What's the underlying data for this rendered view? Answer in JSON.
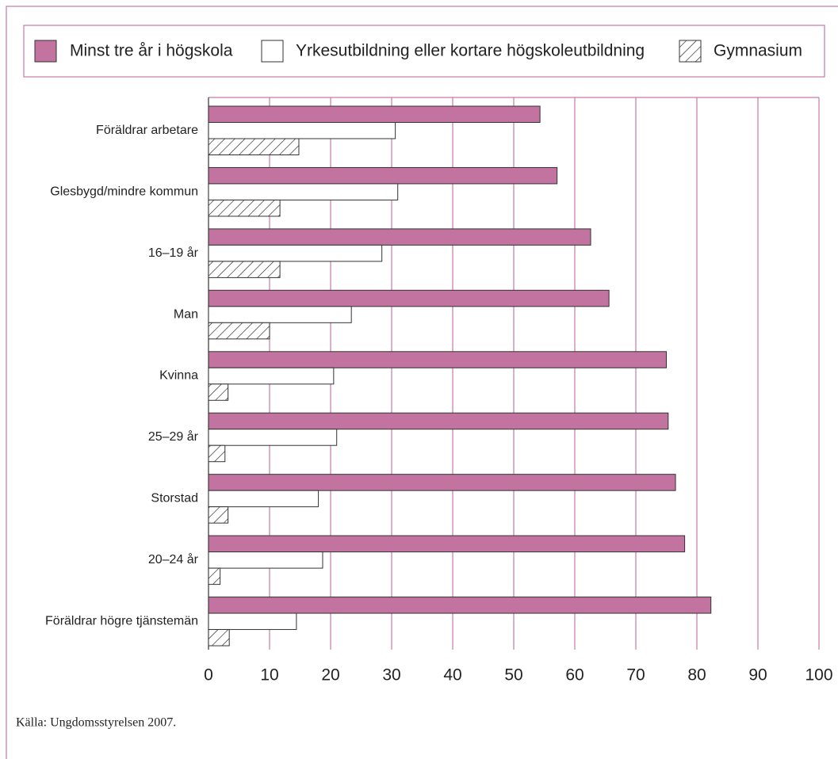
{
  "chart_data": {
    "type": "barh",
    "categories": [
      "Föräldrar arbetare",
      "Glesbygd/mindre kommun",
      "16–19 år",
      "Man",
      "Kvinna",
      "25–29 år",
      "Storstad",
      "20–24 år",
      "Föräldrar högre tjänstemän"
    ],
    "series": [
      {
        "name": "Minst tre år i högskola",
        "color": "#c3739f",
        "values": [
          54.3,
          57.1,
          62.6,
          65.6,
          75.0,
          75.3,
          76.5,
          78.0,
          82.3
        ]
      },
      {
        "name": "Yrkesutbildning eller kortare högskoleutbildning",
        "color": "#ffffff",
        "values": [
          30.6,
          31.0,
          28.4,
          23.4,
          20.5,
          21.0,
          18.0,
          18.7,
          14.4
        ]
      },
      {
        "name": "Gymnasium",
        "color": "#ffffff",
        "pattern": "hatch",
        "values": [
          14.8,
          11.7,
          11.7,
          10.0,
          3.2,
          2.7,
          3.2,
          1.9,
          3.4
        ]
      }
    ],
    "xlim": [
      0,
      100
    ],
    "xticks": [
      0,
      10,
      20,
      30,
      40,
      50,
      60,
      70,
      80,
      90,
      100
    ],
    "grid": true,
    "source": "Källa: Ungdomsstyrelsen 2007."
  }
}
